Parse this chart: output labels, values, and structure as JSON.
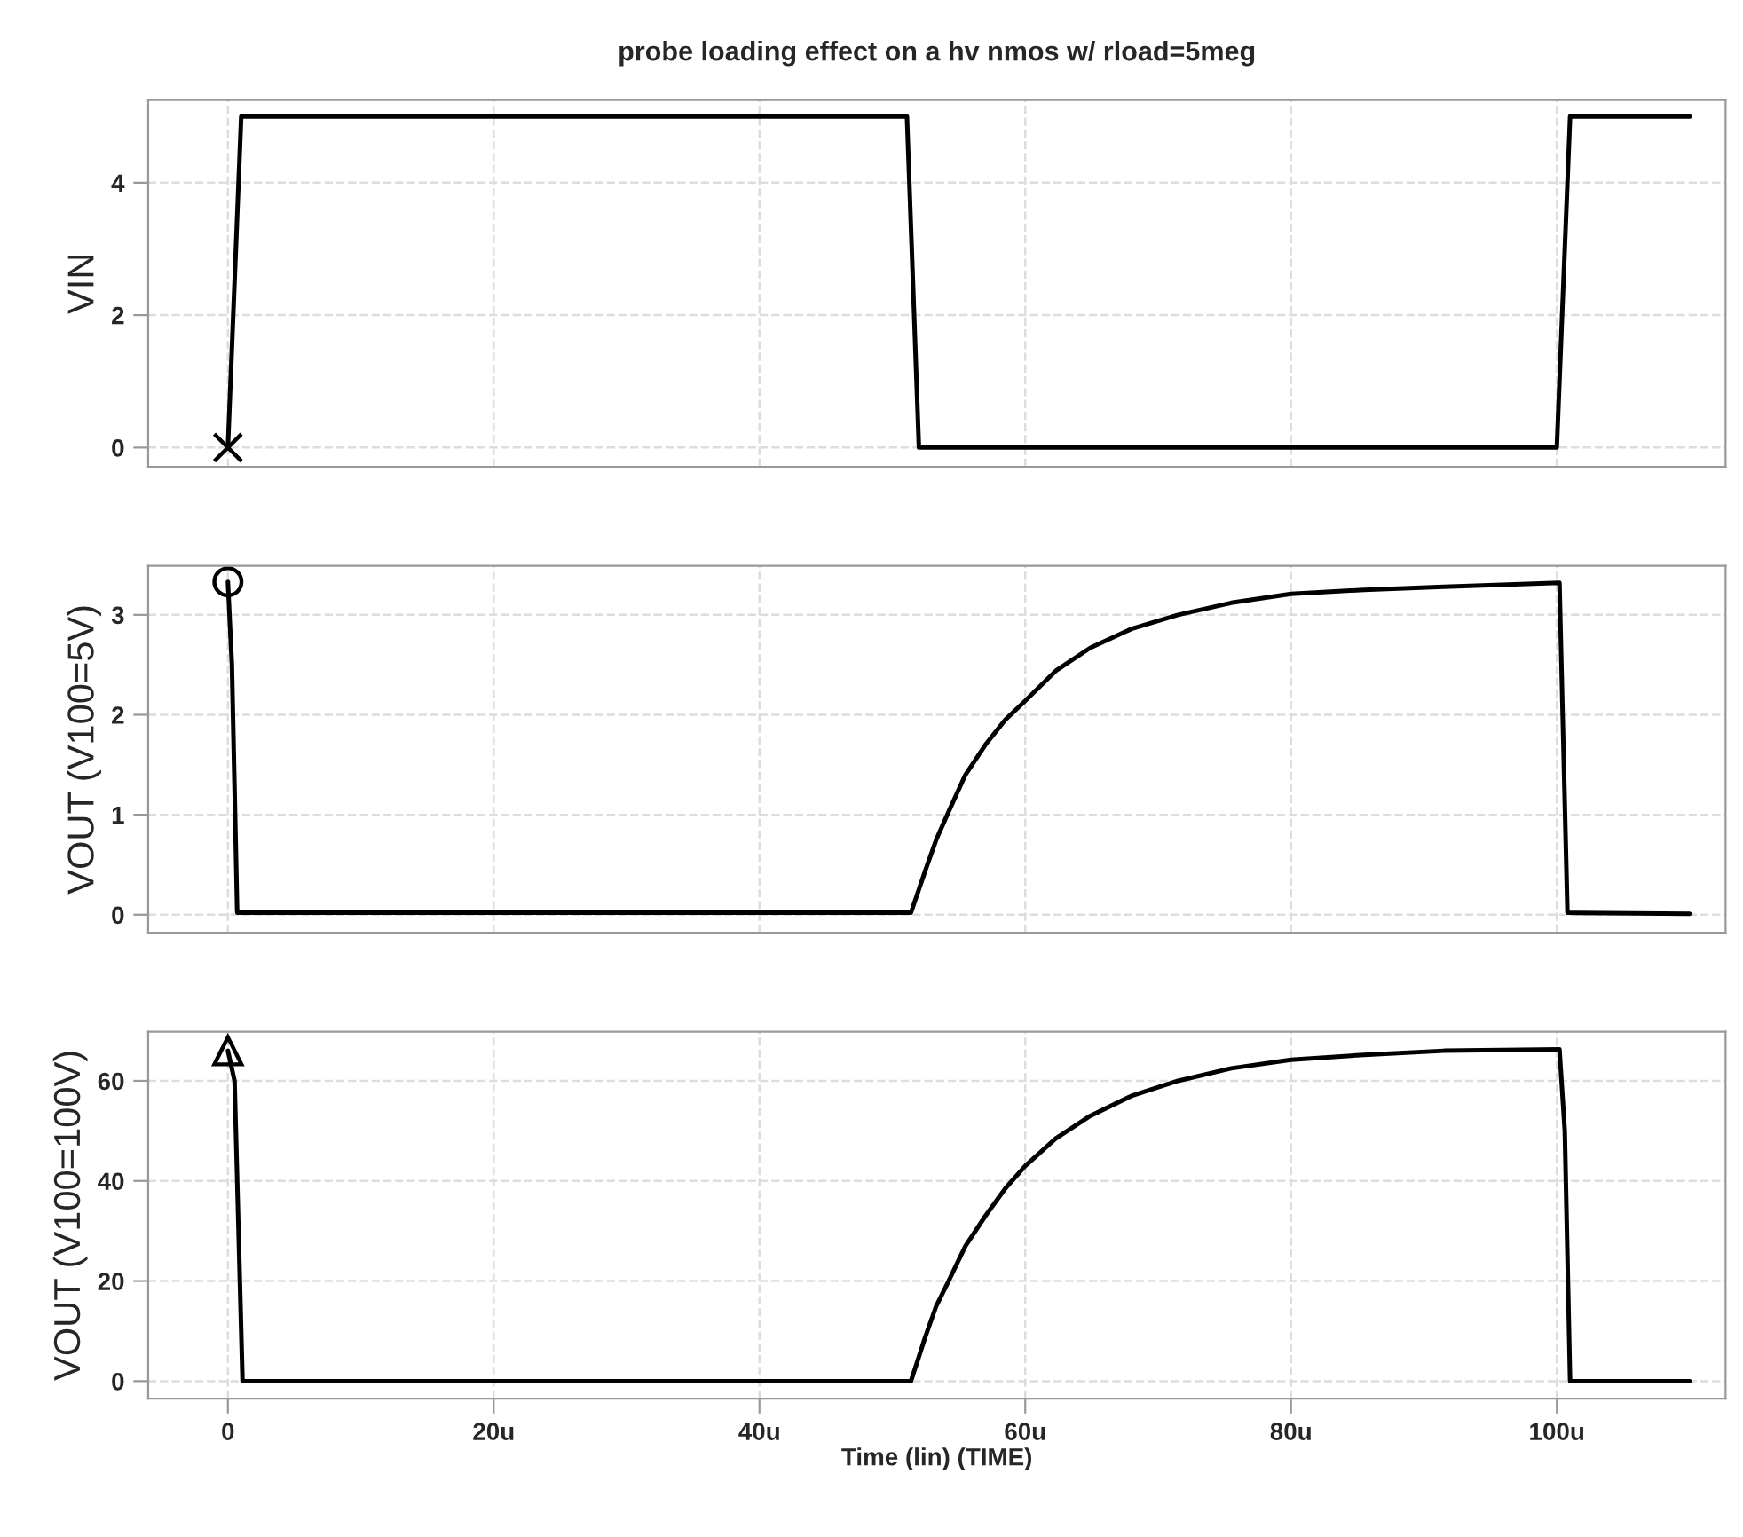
{
  "chart_data": [
    {
      "type": "line",
      "title": "probe loading effect on a hv nmos w/ rload=5meg",
      "ylabel": "VIN",
      "xlim": [
        -6,
        112.7
      ],
      "xticks": [
        {
          "value": 0,
          "label": null
        },
        {
          "value": 20,
          "label": null
        },
        {
          "value": 40,
          "label": null
        },
        {
          "value": 60,
          "label": null
        },
        {
          "value": 80,
          "label": null
        },
        {
          "value": 100,
          "label": null
        }
      ],
      "ylim": [
        -0.29,
        5.25
      ],
      "yticks": [
        0,
        2,
        4
      ],
      "grid": true,
      "tick_labels": "y",
      "series": [
        {
          "color": "#000000",
          "x": [
            0,
            1,
            51.1,
            52,
            100,
            101,
            110
          ],
          "values": [
            0,
            5,
            5,
            0,
            0,
            5,
            5
          ]
        },
        {
          "type": "scatter",
          "color": "#000000",
          "marker": "cross",
          "x": [
            0
          ],
          "values": [
            0
          ]
        }
      ]
    },
    {
      "type": "line",
      "ylabel": "VOUT (V100=5V)",
      "xlim": [
        -6,
        112.7
      ],
      "xticks": [
        {
          "value": 0,
          "label": null
        },
        {
          "value": 20,
          "label": null
        },
        {
          "value": 40,
          "label": null
        },
        {
          "value": 60,
          "label": null
        },
        {
          "value": 80,
          "label": null
        },
        {
          "value": 100,
          "label": null
        }
      ],
      "ylim": [
        -0.18,
        3.49
      ],
      "yticks": [
        0,
        1,
        2,
        3
      ],
      "grid": true,
      "tick_labels": "y",
      "series": [
        {
          "color": "#000000",
          "x": [
            0,
            0.3,
            0.7,
            51.4,
            52.5,
            53.3,
            54.2,
            55.5,
            57,
            58.5,
            60,
            62.3,
            64.9,
            68,
            71.5,
            75.5,
            80,
            85.5,
            91.5,
            100.2,
            100.8,
            110
          ],
          "values": [
            3.33,
            2.5,
            0.02,
            0.02,
            0.45,
            0.75,
            1.02,
            1.4,
            1.7,
            1.95,
            2.14,
            2.44,
            2.67,
            2.86,
            3.0,
            3.12,
            3.21,
            3.25,
            3.28,
            3.32,
            0.02,
            0.01
          ]
        },
        {
          "type": "scatter",
          "color": "#000000",
          "marker": "circle",
          "x": [
            0
          ],
          "values": [
            3.33
          ]
        }
      ]
    },
    {
      "type": "line",
      "ylabel": "VOUT (V100=100V)",
      "xlabel": "Time (lin) (TIME)",
      "xlim": [
        -6,
        112.7
      ],
      "xticks": [
        {
          "value": 0,
          "label": "0"
        },
        {
          "value": 20,
          "label": "20u"
        },
        {
          "value": 40,
          "label": "40u"
        },
        {
          "value": 60,
          "label": "60u"
        },
        {
          "value": 80,
          "label": "80u"
        },
        {
          "value": 100,
          "label": "100u"
        }
      ],
      "ylim": [
        -3.5,
        69.8
      ],
      "yticks": [
        0,
        20,
        40,
        60
      ],
      "grid": true,
      "series": [
        {
          "color": "#000000",
          "x": [
            0,
            0.5,
            1.1,
            51.4,
            52.5,
            53.3,
            54.2,
            55.5,
            57,
            58.5,
            60,
            62.3,
            64.9,
            68,
            71.5,
            75.5,
            80,
            85.5,
            91.5,
            100.2,
            100.6,
            101,
            110
          ],
          "values": [
            66,
            60,
            0,
            0,
            9,
            15,
            19.8,
            27,
            33,
            38.5,
            43,
            48.5,
            53,
            57,
            60,
            62.5,
            64.2,
            65.2,
            66,
            66.3,
            50,
            0,
            0
          ]
        },
        {
          "type": "scatter",
          "color": "#000000",
          "marker": "triangle",
          "x": [
            0
          ],
          "values": [
            66
          ]
        }
      ]
    }
  ]
}
